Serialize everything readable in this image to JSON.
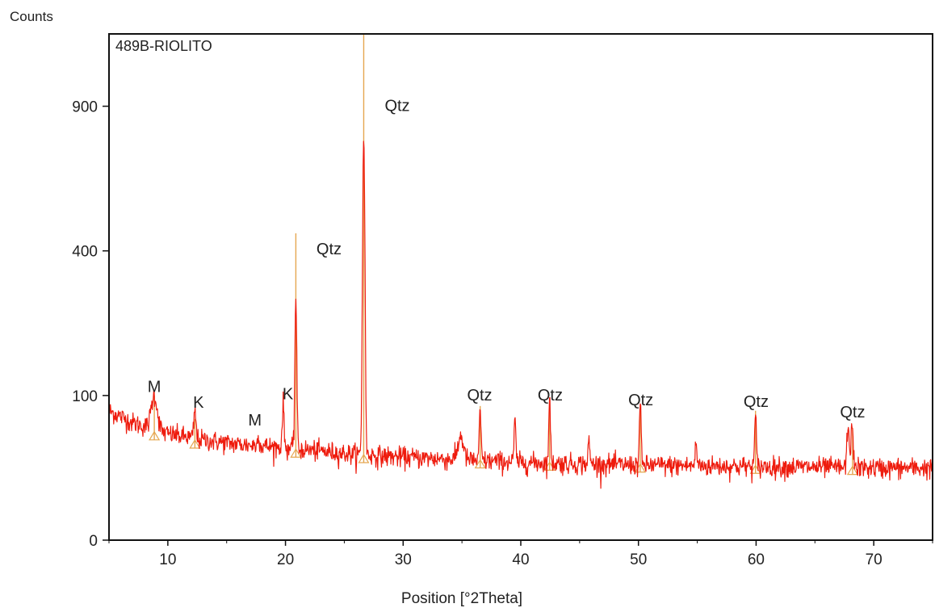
{
  "chart_data": {
    "type": "line",
    "title": "",
    "sample_label": "489B-RIOLITO",
    "xlabel": "Position [°2Theta]",
    "ylabel": "Counts",
    "scale": "sqrt",
    "xlim": [
      5,
      75
    ],
    "ylim": [
      0,
      1225
    ],
    "grid": false,
    "x_ticks": [
      {
        "value": 10,
        "label": "10"
      },
      {
        "value": 20,
        "label": "20"
      },
      {
        "value": 30,
        "label": "30"
      },
      {
        "value": 40,
        "label": "40"
      },
      {
        "value": 50,
        "label": "50"
      },
      {
        "value": 60,
        "label": "60"
      },
      {
        "value": 70,
        "label": "70"
      }
    ],
    "y_ticks": [
      {
        "value": 0,
        "label": "0"
      },
      {
        "value": 100,
        "label": "100"
      },
      {
        "value": 400,
        "label": "400"
      },
      {
        "value": 900,
        "label": "900"
      }
    ],
    "colors": {
      "pattern": "#ee1c0e",
      "reference": "#e5a650",
      "axis": "#111111"
    },
    "baseline": [
      [
        5,
        80
      ],
      [
        7,
        66
      ],
      [
        10,
        54
      ],
      [
        13,
        48
      ],
      [
        16,
        44
      ],
      [
        20,
        41
      ],
      [
        25,
        36
      ],
      [
        30,
        33
      ],
      [
        35,
        31
      ],
      [
        40,
        29
      ],
      [
        50,
        27
      ],
      [
        60,
        26
      ],
      [
        70,
        25
      ],
      [
        75,
        25
      ]
    ],
    "peaks": [
      {
        "x": 8.85,
        "counts": 100,
        "width": 0.35,
        "phase": "M"
      },
      {
        "x": 12.3,
        "counts": 80,
        "width": 0.12,
        "phase": "K"
      },
      {
        "x": 17.7,
        "counts": 58,
        "width": 0.08,
        "phase": "M"
      },
      {
        "x": 19.8,
        "counts": 90,
        "width": 0.1,
        "phase": "K"
      },
      {
        "x": 20.88,
        "counts": 280,
        "width": 0.1,
        "phase": "Qtz"
      },
      {
        "x": 26.65,
        "counts": 790,
        "width": 0.12,
        "phase": "Qtz"
      },
      {
        "x": 34.9,
        "counts": 52,
        "width": 0.3,
        "phase": ""
      },
      {
        "x": 36.55,
        "counts": 76,
        "width": 0.1,
        "phase": "Qtz"
      },
      {
        "x": 39.5,
        "counts": 66,
        "width": 0.1,
        "phase": ""
      },
      {
        "x": 42.45,
        "counts": 90,
        "width": 0.1,
        "phase": "Qtz"
      },
      {
        "x": 45.8,
        "counts": 46,
        "width": 0.1,
        "phase": ""
      },
      {
        "x": 50.15,
        "counts": 86,
        "width": 0.1,
        "phase": "Qtz"
      },
      {
        "x": 54.9,
        "counts": 44,
        "width": 0.1,
        "phase": ""
      },
      {
        "x": 59.95,
        "counts": 72,
        "width": 0.1,
        "phase": "Qtz"
      },
      {
        "x": 67.8,
        "counts": 60,
        "width": 0.12,
        "phase": "Qtz"
      },
      {
        "x": 68.15,
        "counts": 68,
        "width": 0.12,
        "phase": "Qtz"
      }
    ],
    "reference_lines": [
      {
        "x": 8.85,
        "counts": 100
      },
      {
        "x": 12.3,
        "counts": 70
      },
      {
        "x": 20.88,
        "counts": 450
      },
      {
        "x": 26.65,
        "counts": 1225
      },
      {
        "x": 36.55,
        "counts": 86
      },
      {
        "x": 42.45,
        "counts": 89
      },
      {
        "x": 50.15,
        "counts": 80
      },
      {
        "x": 59.95,
        "counts": 80
      },
      {
        "x": 68.2,
        "counts": 60
      }
    ],
    "annotations": [
      {
        "text": "M",
        "x": 8.85,
        "counts": 105
      },
      {
        "text": "K",
        "x": 12.6,
        "counts": 84
      },
      {
        "text": "M",
        "x": 17.4,
        "counts": 63
      },
      {
        "text": "K",
        "x": 20.2,
        "counts": 95
      },
      {
        "text": "Qtz",
        "x": 23.7,
        "counts": 390
      },
      {
        "text": "Qtz",
        "x": 29.5,
        "counts": 880
      },
      {
        "text": "Qtz",
        "x": 36.5,
        "counts": 93
      },
      {
        "text": "Qtz",
        "x": 42.5,
        "counts": 93
      },
      {
        "text": "Qtz",
        "x": 50.2,
        "counts": 87
      },
      {
        "text": "Qtz",
        "x": 60.0,
        "counts": 85
      },
      {
        "text": "Qtz",
        "x": 68.2,
        "counts": 72
      }
    ]
  }
}
